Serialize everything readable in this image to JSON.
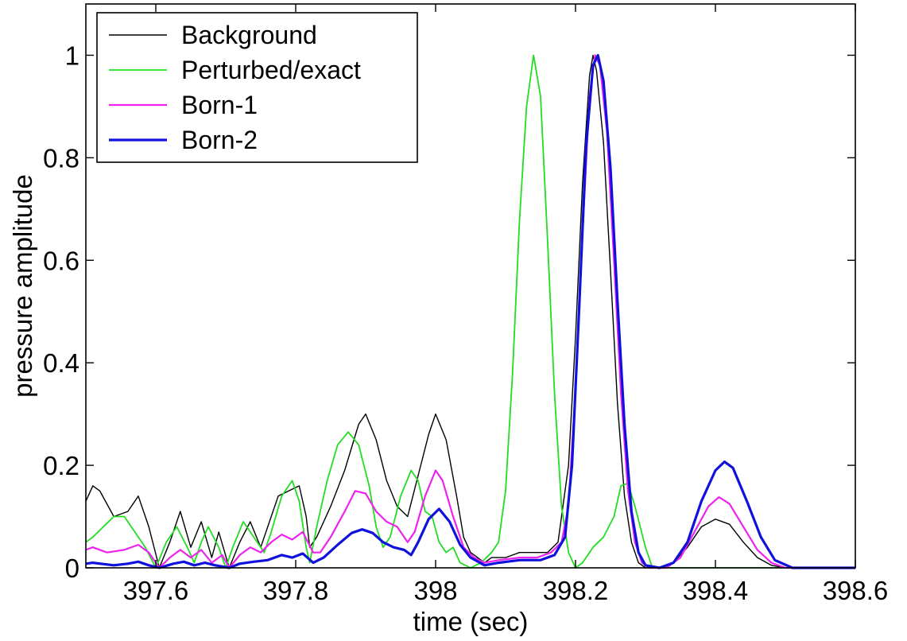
{
  "chart_data": {
    "type": "line",
    "title": "",
    "xlabel": "time (sec)",
    "ylabel": "pressure amplitude",
    "xlim": [
      397.5,
      398.6
    ],
    "ylim": [
      0,
      1.1
    ],
    "grid": false,
    "legend_position": "top-left",
    "x_ticks": [
      397.6,
      397.8,
      398.0,
      398.2,
      398.4,
      398.6
    ],
    "x_tick_labels": [
      "397.6",
      "397.8",
      "398",
      "398.2",
      "398.4",
      "398.6"
    ],
    "y_ticks": [
      0,
      0.2,
      0.4,
      0.6,
      0.8,
      1.0
    ],
    "y_tick_labels": [
      "0",
      "0.2",
      "0.4",
      "0.6",
      "0.8",
      "1"
    ],
    "series": [
      {
        "name": "Background",
        "color": "#000000",
        "width": 1.4,
        "points": [
          [
            397.5,
            0.13
          ],
          [
            397.51,
            0.16
          ],
          [
            397.52,
            0.15
          ],
          [
            397.54,
            0.1
          ],
          [
            397.56,
            0.11
          ],
          [
            397.575,
            0.14
          ],
          [
            397.59,
            0.08
          ],
          [
            397.605,
            0.0
          ],
          [
            397.62,
            0.05
          ],
          [
            397.635,
            0.11
          ],
          [
            397.65,
            0.04
          ],
          [
            397.665,
            0.09
          ],
          [
            397.68,
            0.02
          ],
          [
            397.69,
            0.07
          ],
          [
            397.705,
            0.0
          ],
          [
            397.72,
            0.05
          ],
          [
            397.735,
            0.09
          ],
          [
            397.75,
            0.04
          ],
          [
            397.76,
            0.08
          ],
          [
            397.775,
            0.14
          ],
          [
            397.79,
            0.15
          ],
          [
            397.805,
            0.16
          ],
          [
            397.815,
            0.1
          ],
          [
            397.82,
            0.04
          ],
          [
            397.83,
            0.06
          ],
          [
            397.85,
            0.12
          ],
          [
            397.87,
            0.19
          ],
          [
            397.89,
            0.28
          ],
          [
            397.9,
            0.3
          ],
          [
            397.915,
            0.25
          ],
          [
            397.93,
            0.17
          ],
          [
            397.945,
            0.12
          ],
          [
            397.96,
            0.1
          ],
          [
            397.975,
            0.18
          ],
          [
            397.99,
            0.26
          ],
          [
            398.0,
            0.3
          ],
          [
            398.015,
            0.25
          ],
          [
            398.03,
            0.14
          ],
          [
            398.04,
            0.06
          ],
          [
            398.05,
            0.03
          ],
          [
            398.06,
            0.02
          ],
          [
            398.07,
            0.01
          ],
          [
            398.08,
            0.02
          ],
          [
            398.1,
            0.02
          ],
          [
            398.12,
            0.03
          ],
          [
            398.145,
            0.03
          ],
          [
            398.16,
            0.03
          ],
          [
            398.175,
            0.05
          ],
          [
            398.19,
            0.2
          ],
          [
            398.2,
            0.45
          ],
          [
            398.21,
            0.75
          ],
          [
            398.22,
            0.96
          ],
          [
            398.225,
            1.0
          ],
          [
            398.23,
            0.97
          ],
          [
            398.24,
            0.83
          ],
          [
            398.25,
            0.58
          ],
          [
            398.26,
            0.32
          ],
          [
            398.27,
            0.14
          ],
          [
            398.28,
            0.05
          ],
          [
            398.29,
            0.01
          ],
          [
            398.3,
            0.0
          ],
          [
            398.32,
            0.0
          ],
          [
            398.34,
            0.01
          ],
          [
            398.36,
            0.04
          ],
          [
            398.38,
            0.08
          ],
          [
            398.4,
            0.095
          ],
          [
            398.42,
            0.085
          ],
          [
            398.44,
            0.05
          ],
          [
            398.46,
            0.02
          ],
          [
            398.48,
            0.005
          ],
          [
            398.5,
            0.0
          ],
          [
            398.6,
            0.0
          ]
        ]
      },
      {
        "name": "Perturbed/exact",
        "color": "#22dd22",
        "width": 1.8,
        "points": [
          [
            397.5,
            0.05
          ],
          [
            397.51,
            0.06
          ],
          [
            397.525,
            0.08
          ],
          [
            397.54,
            0.1
          ],
          [
            397.555,
            0.1
          ],
          [
            397.57,
            0.07
          ],
          [
            397.585,
            0.04
          ],
          [
            397.6,
            0.0
          ],
          [
            397.615,
            0.05
          ],
          [
            397.63,
            0.08
          ],
          [
            397.645,
            0.04
          ],
          [
            397.655,
            0.01
          ],
          [
            397.665,
            0.05
          ],
          [
            397.675,
            0.08
          ],
          [
            397.69,
            0.04
          ],
          [
            397.7,
            0.0
          ],
          [
            397.71,
            0.04
          ],
          [
            397.725,
            0.09
          ],
          [
            397.74,
            0.06
          ],
          [
            397.755,
            0.03
          ],
          [
            397.765,
            0.07
          ],
          [
            397.78,
            0.14
          ],
          [
            397.795,
            0.17
          ],
          [
            397.805,
            0.13
          ],
          [
            397.815,
            0.04
          ],
          [
            397.82,
            0.01
          ],
          [
            397.83,
            0.08
          ],
          [
            397.845,
            0.17
          ],
          [
            397.86,
            0.24
          ],
          [
            397.875,
            0.265
          ],
          [
            397.89,
            0.24
          ],
          [
            397.905,
            0.16
          ],
          [
            397.915,
            0.08
          ],
          [
            397.925,
            0.04
          ],
          [
            397.935,
            0.06
          ],
          [
            397.95,
            0.14
          ],
          [
            397.965,
            0.19
          ],
          [
            397.975,
            0.17
          ],
          [
            397.985,
            0.11
          ],
          [
            397.995,
            0.1
          ],
          [
            398.005,
            0.05
          ],
          [
            398.015,
            0.03
          ],
          [
            398.025,
            0.04
          ],
          [
            398.035,
            0.01
          ],
          [
            398.05,
            0.0
          ],
          [
            398.065,
            0.01
          ],
          [
            398.08,
            0.03
          ],
          [
            398.09,
            0.05
          ],
          [
            398.1,
            0.15
          ],
          [
            398.11,
            0.38
          ],
          [
            398.12,
            0.68
          ],
          [
            398.13,
            0.9
          ],
          [
            398.14,
            1.0
          ],
          [
            398.15,
            0.92
          ],
          [
            398.16,
            0.64
          ],
          [
            398.17,
            0.34
          ],
          [
            398.18,
            0.12
          ],
          [
            398.19,
            0.03
          ],
          [
            398.2,
            0.0
          ],
          [
            398.21,
            0.01
          ],
          [
            398.225,
            0.04
          ],
          [
            398.24,
            0.06
          ],
          [
            398.255,
            0.1
          ],
          [
            398.265,
            0.16
          ],
          [
            398.275,
            0.165
          ],
          [
            398.285,
            0.12
          ],
          [
            398.3,
            0.04
          ],
          [
            398.31,
            0.0
          ],
          [
            398.33,
            0.0
          ],
          [
            398.6,
            0.0
          ]
        ]
      },
      {
        "name": "Born-1",
        "color": "#ee22ee",
        "width": 2.2,
        "points": [
          [
            397.5,
            0.035
          ],
          [
            397.51,
            0.04
          ],
          [
            397.53,
            0.03
          ],
          [
            397.555,
            0.035
          ],
          [
            397.575,
            0.045
          ],
          [
            397.59,
            0.03
          ],
          [
            397.605,
            0.0
          ],
          [
            397.62,
            0.02
          ],
          [
            397.635,
            0.035
          ],
          [
            397.65,
            0.02
          ],
          [
            397.665,
            0.035
          ],
          [
            397.68,
            0.01
          ],
          [
            397.695,
            0.025
          ],
          [
            397.705,
            0.0
          ],
          [
            397.72,
            0.025
          ],
          [
            397.735,
            0.04
          ],
          [
            397.75,
            0.03
          ],
          [
            397.765,
            0.05
          ],
          [
            397.78,
            0.065
          ],
          [
            397.795,
            0.055
          ],
          [
            397.81,
            0.07
          ],
          [
            397.825,
            0.03
          ],
          [
            397.835,
            0.03
          ],
          [
            397.85,
            0.06
          ],
          [
            397.87,
            0.11
          ],
          [
            397.885,
            0.15
          ],
          [
            397.9,
            0.145
          ],
          [
            397.915,
            0.11
          ],
          [
            397.93,
            0.09
          ],
          [
            397.945,
            0.08
          ],
          [
            397.96,
            0.05
          ],
          [
            397.97,
            0.07
          ],
          [
            397.985,
            0.14
          ],
          [
            398.0,
            0.19
          ],
          [
            398.01,
            0.17
          ],
          [
            398.025,
            0.1
          ],
          [
            398.04,
            0.04
          ],
          [
            398.055,
            0.02
          ],
          [
            398.07,
            0.01
          ],
          [
            398.09,
            0.015
          ],
          [
            398.12,
            0.02
          ],
          [
            398.145,
            0.02
          ],
          [
            398.165,
            0.03
          ],
          [
            398.18,
            0.05
          ],
          [
            398.19,
            0.12
          ],
          [
            398.2,
            0.35
          ],
          [
            398.21,
            0.65
          ],
          [
            398.22,
            0.92
          ],
          [
            398.228,
            1.0
          ],
          [
            398.235,
            0.98
          ],
          [
            398.245,
            0.85
          ],
          [
            398.255,
            0.6
          ],
          [
            398.265,
            0.34
          ],
          [
            398.275,
            0.15
          ],
          [
            398.285,
            0.05
          ],
          [
            398.295,
            0.01
          ],
          [
            398.305,
            0.0
          ],
          [
            398.33,
            0.0
          ],
          [
            398.35,
            0.02
          ],
          [
            398.37,
            0.07
          ],
          [
            398.39,
            0.12
          ],
          [
            398.405,
            0.138
          ],
          [
            398.42,
            0.125
          ],
          [
            398.44,
            0.08
          ],
          [
            398.46,
            0.035
          ],
          [
            398.48,
            0.01
          ],
          [
            398.5,
            0.0
          ],
          [
            398.6,
            0.0
          ]
        ]
      },
      {
        "name": "Born-2",
        "color": "#1111dd",
        "width": 3.2,
        "points": [
          [
            397.5,
            0.008
          ],
          [
            397.51,
            0.01
          ],
          [
            397.54,
            0.005
          ],
          [
            397.56,
            0.008
          ],
          [
            397.575,
            0.012
          ],
          [
            397.59,
            0.005
          ],
          [
            397.605,
            0.0
          ],
          [
            397.625,
            0.008
          ],
          [
            397.64,
            0.012
          ],
          [
            397.655,
            0.005
          ],
          [
            397.67,
            0.01
          ],
          [
            397.685,
            0.005
          ],
          [
            397.705,
            0.0
          ],
          [
            397.72,
            0.008
          ],
          [
            397.74,
            0.012
          ],
          [
            397.76,
            0.015
          ],
          [
            397.78,
            0.025
          ],
          [
            397.795,
            0.02
          ],
          [
            397.81,
            0.028
          ],
          [
            397.825,
            0.01
          ],
          [
            397.84,
            0.02
          ],
          [
            397.86,
            0.045
          ],
          [
            397.88,
            0.068
          ],
          [
            397.895,
            0.075
          ],
          [
            397.91,
            0.068
          ],
          [
            397.925,
            0.05
          ],
          [
            397.94,
            0.04
          ],
          [
            397.955,
            0.035
          ],
          [
            397.965,
            0.025
          ],
          [
            397.975,
            0.05
          ],
          [
            397.99,
            0.095
          ],
          [
            398.005,
            0.115
          ],
          [
            398.02,
            0.09
          ],
          [
            398.035,
            0.045
          ],
          [
            398.05,
            0.02
          ],
          [
            398.07,
            0.005
          ],
          [
            398.09,
            0.01
          ],
          [
            398.12,
            0.015
          ],
          [
            398.15,
            0.015
          ],
          [
            398.17,
            0.025
          ],
          [
            398.185,
            0.06
          ],
          [
            398.195,
            0.2
          ],
          [
            398.205,
            0.5
          ],
          [
            398.215,
            0.82
          ],
          [
            398.225,
            0.98
          ],
          [
            398.232,
            1.0
          ],
          [
            398.24,
            0.95
          ],
          [
            398.25,
            0.78
          ],
          [
            398.26,
            0.52
          ],
          [
            398.27,
            0.28
          ],
          [
            398.28,
            0.11
          ],
          [
            398.29,
            0.03
          ],
          [
            398.3,
            0.005
          ],
          [
            398.32,
            0.0
          ],
          [
            398.34,
            0.01
          ],
          [
            398.36,
            0.05
          ],
          [
            398.38,
            0.13
          ],
          [
            398.4,
            0.19
          ],
          [
            398.413,
            0.207
          ],
          [
            398.425,
            0.195
          ],
          [
            398.445,
            0.13
          ],
          [
            398.465,
            0.06
          ],
          [
            398.485,
            0.015
          ],
          [
            398.51,
            0.0
          ],
          [
            398.6,
            0.0
          ]
        ]
      }
    ]
  }
}
